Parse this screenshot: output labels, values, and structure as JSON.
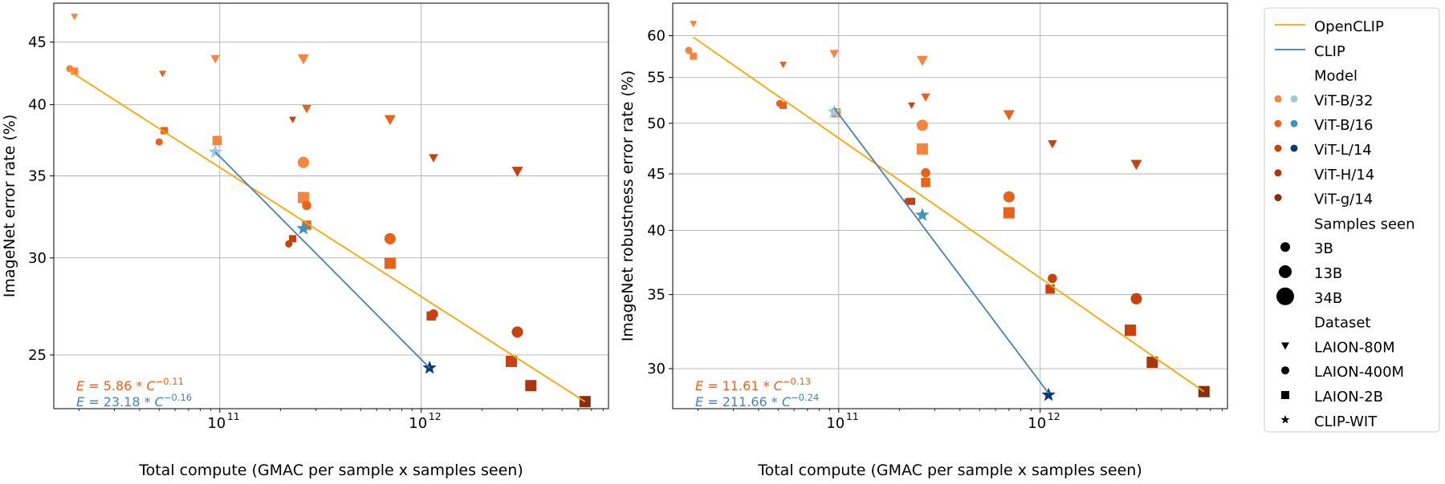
{
  "chart_data": [
    {
      "type": "scatter",
      "xlabel": "Total compute (GMAC per sample x samples seen)",
      "ylabel": "ImageNet error rate (%)",
      "xscale": "log",
      "yscale": "log",
      "xlim": [
        15000000000.0,
        8500000000000.0
      ],
      "ylim": [
        22.6,
        48.4
      ],
      "x_ticks": [
        100000000000.0,
        1000000000000.0
      ],
      "x_tick_labels": [
        "10",
        "10"
      ],
      "x_tick_exponents": [
        "11",
        "12"
      ],
      "y_ticks": [
        25,
        30,
        35,
        40,
        45
      ],
      "y_tick_labels": [
        "25",
        "30",
        "35",
        "40",
        "45"
      ],
      "grid": true,
      "fits": [
        {
          "name": "OpenCLIP",
          "x": [
            18000000000.0,
            6500000000000.0
          ],
          "y": [
            42.6,
            22.9
          ]
        },
        {
          "name": "CLIP",
          "x": [
            95000000000.0,
            1100000000000.0
          ],
          "y": [
            36.6,
            24.4
          ]
        }
      ],
      "annotations": [
        {
          "series": "OpenCLIP",
          "prefix": "E",
          "text": " = 5.86 * ",
          "base": "C",
          "exponent": "−0.11"
        },
        {
          "series": "CLIP",
          "prefix": "E",
          "text": " = 23.18 * ",
          "base": "C",
          "exponent": "−0.16"
        }
      ],
      "points": [
        {
          "model": "ViT-B/32",
          "samples": "3B",
          "dataset": "LAION-80M",
          "x": 19000000000.0,
          "y": 47.2
        },
        {
          "model": "ViT-B/32",
          "samples": "3B",
          "dataset": "LAION-400M",
          "x": 18000000000.0,
          "y": 42.8
        },
        {
          "model": "ViT-B/32",
          "samples": "3B",
          "dataset": "LAION-2B",
          "x": 19000000000.0,
          "y": 42.6
        },
        {
          "model": "ViT-B/16",
          "samples": "3B",
          "dataset": "LAION-80M",
          "x": 52000000000.0,
          "y": 42.4
        },
        {
          "model": "ViT-B/16",
          "samples": "3B",
          "dataset": "LAION-400M",
          "x": 50000000000.0,
          "y": 37.3
        },
        {
          "model": "ViT-B/16",
          "samples": "3B",
          "dataset": "LAION-2B",
          "x": 53000000000.0,
          "y": 38.1
        },
        {
          "model": "ViT-B/32",
          "samples": "13B",
          "dataset": "LAION-80M",
          "x": 95000000000.0,
          "y": 43.6
        },
        {
          "model": "ViT-B/32",
          "samples": "13B",
          "dataset": "LAION-2B",
          "x": 97000000000.0,
          "y": 37.4
        },
        {
          "model": "ViT-L/14",
          "samples": "3B",
          "dataset": "LAION-80M",
          "x": 230000000000.0,
          "y": 38.9
        },
        {
          "model": "ViT-L/14",
          "samples": "3B",
          "dataset": "LAION-400M",
          "x": 220000000000.0,
          "y": 30.8
        },
        {
          "model": "ViT-L/14",
          "samples": "3B",
          "dataset": "LAION-2B",
          "x": 230000000000.0,
          "y": 31.1
        },
        {
          "model": "ViT-B/32",
          "samples": "34B",
          "dataset": "LAION-80M",
          "x": 260000000000.0,
          "y": 43.6
        },
        {
          "model": "ViT-B/32",
          "samples": "34B",
          "dataset": "LAION-400M",
          "x": 260000000000.0,
          "y": 35.9
        },
        {
          "model": "ViT-B/32",
          "samples": "34B",
          "dataset": "LAION-2B",
          "x": 260000000000.0,
          "y": 33.6
        },
        {
          "model": "ViT-B/16",
          "samples": "13B",
          "dataset": "LAION-80M",
          "x": 270000000000.0,
          "y": 39.7
        },
        {
          "model": "ViT-B/16",
          "samples": "13B",
          "dataset": "LAION-400M",
          "x": 270000000000.0,
          "y": 33.1
        },
        {
          "model": "ViT-B/16",
          "samples": "13B",
          "dataset": "LAION-2B",
          "x": 270000000000.0,
          "y": 31.9
        },
        {
          "model": "ViT-B/16",
          "samples": "34B",
          "dataset": "LAION-80M",
          "x": 700000000000.0,
          "y": 38.9
        },
        {
          "model": "ViT-B/16",
          "samples": "34B",
          "dataset": "LAION-400M",
          "x": 700000000000.0,
          "y": 31.1
        },
        {
          "model": "ViT-B/16",
          "samples": "34B",
          "dataset": "LAION-2B",
          "x": 700000000000.0,
          "y": 29.7
        },
        {
          "model": "ViT-L/14",
          "samples": "13B",
          "dataset": "LAION-80M",
          "x": 1150000000000.0,
          "y": 36.2
        },
        {
          "model": "ViT-L/14",
          "samples": "13B",
          "dataset": "LAION-400M",
          "x": 1150000000000.0,
          "y": 27.0
        },
        {
          "model": "ViT-L/14",
          "samples": "13B",
          "dataset": "LAION-2B",
          "x": 1120000000000.0,
          "y": 26.9
        },
        {
          "model": "ViT-L/14",
          "samples": "34B",
          "dataset": "LAION-80M",
          "x": 3000000000000.0,
          "y": 35.3
        },
        {
          "model": "ViT-L/14",
          "samples": "34B",
          "dataset": "LAION-400M",
          "x": 3000000000000.0,
          "y": 26.1
        },
        {
          "model": "ViT-L/14",
          "samples": "34B",
          "dataset": "LAION-2B",
          "x": 2800000000000.0,
          "y": 24.7
        },
        {
          "model": "ViT-H/14",
          "samples": "34B",
          "dataset": "LAION-2B",
          "x": 3500000000000.0,
          "y": 23.6
        },
        {
          "model": "ViT-g/14",
          "samples": "34B",
          "dataset": "LAION-2B",
          "x": 6500000000000.0,
          "y": 22.9
        },
        {
          "model": "ViT-B/32",
          "samples": "",
          "dataset": "CLIP-WIT",
          "x": 95000000000.0,
          "y": 36.6
        },
        {
          "model": "ViT-B/16",
          "samples": "",
          "dataset": "CLIP-WIT",
          "x": 260000000000.0,
          "y": 31.7
        },
        {
          "model": "ViT-L/14",
          "samples": "",
          "dataset": "CLIP-WIT",
          "x": 1100000000000.0,
          "y": 24.4
        }
      ]
    },
    {
      "type": "scatter",
      "xlabel": "Total compute (GMAC per sample x samples seen)",
      "ylabel": "ImageNet robustness error rate (%)",
      "xscale": "log",
      "yscale": "log",
      "xlim": [
        15000000000.0,
        8500000000000.0
      ],
      "ylim": [
        27.6,
        64.2
      ],
      "x_ticks": [
        100000000000.0,
        1000000000000.0
      ],
      "x_tick_labels": [
        "10",
        "10"
      ],
      "x_tick_exponents": [
        "11",
        "12"
      ],
      "y_ticks": [
        30,
        35,
        40,
        45,
        50,
        55,
        60
      ],
      "y_tick_labels": [
        "30",
        "35",
        "40",
        "45",
        "50",
        "55",
        "60"
      ],
      "grid": true,
      "fits": [
        {
          "name": "OpenCLIP",
          "x": [
            19000000000.0,
            6500000000000.0
          ],
          "y": [
            59.8,
            28.6
          ]
        },
        {
          "name": "CLIP",
          "x": [
            95000000000.0,
            1100000000000.0
          ],
          "y": [
            51.6,
            28.5
          ]
        }
      ],
      "annotations": [
        {
          "series": "OpenCLIP",
          "prefix": "E",
          "text": " = 11.61 * ",
          "base": "C",
          "exponent": "−0.13"
        },
        {
          "series": "CLIP",
          "prefix": "E",
          "text": " = 211.66 * ",
          "base": "C",
          "exponent": "−0.24"
        }
      ],
      "points": [
        {
          "model": "ViT-B/32",
          "samples": "3B",
          "dataset": "LAION-80M",
          "x": 19000000000.0,
          "y": 61.5
        },
        {
          "model": "ViT-B/32",
          "samples": "3B",
          "dataset": "LAION-400M",
          "x": 18000000000.0,
          "y": 58.2
        },
        {
          "model": "ViT-B/32",
          "samples": "3B",
          "dataset": "LAION-2B",
          "x": 19000000000.0,
          "y": 57.5
        },
        {
          "model": "ViT-B/16",
          "samples": "3B",
          "dataset": "LAION-80M",
          "x": 53000000000.0,
          "y": 56.5
        },
        {
          "model": "ViT-B/16",
          "samples": "3B",
          "dataset": "LAION-400M",
          "x": 51000000000.0,
          "y": 52.1
        },
        {
          "model": "ViT-B/16",
          "samples": "3B",
          "dataset": "LAION-2B",
          "x": 53000000000.0,
          "y": 51.9
        },
        {
          "model": "ViT-B/32",
          "samples": "13B",
          "dataset": "LAION-80M",
          "x": 95000000000.0,
          "y": 57.8
        },
        {
          "model": "ViT-B/32",
          "samples": "13B",
          "dataset": "LAION-2B",
          "x": 97000000000.0,
          "y": 51.1
        },
        {
          "model": "ViT-L/14",
          "samples": "3B",
          "dataset": "LAION-80M",
          "x": 230000000000.0,
          "y": 51.9
        },
        {
          "model": "ViT-L/14",
          "samples": "3B",
          "dataset": "LAION-400M",
          "x": 220000000000.0,
          "y": 42.5
        },
        {
          "model": "ViT-L/14",
          "samples": "3B",
          "dataset": "LAION-2B",
          "x": 230000000000.0,
          "y": 42.5
        },
        {
          "model": "ViT-B/32",
          "samples": "34B",
          "dataset": "LAION-80M",
          "x": 260000000000.0,
          "y": 57.0
        },
        {
          "model": "ViT-B/32",
          "samples": "34B",
          "dataset": "LAION-400M",
          "x": 260000000000.0,
          "y": 49.8
        },
        {
          "model": "ViT-B/32",
          "samples": "34B",
          "dataset": "LAION-2B",
          "x": 260000000000.0,
          "y": 47.4
        },
        {
          "model": "ViT-B/16",
          "samples": "13B",
          "dataset": "LAION-80M",
          "x": 270000000000.0,
          "y": 52.8
        },
        {
          "model": "ViT-B/16",
          "samples": "13B",
          "dataset": "LAION-400M",
          "x": 270000000000.0,
          "y": 45.1
        },
        {
          "model": "ViT-B/16",
          "samples": "13B",
          "dataset": "LAION-2B",
          "x": 270000000000.0,
          "y": 44.2
        },
        {
          "model": "ViT-B/16",
          "samples": "34B",
          "dataset": "LAION-80M",
          "x": 700000000000.0,
          "y": 50.9
        },
        {
          "model": "ViT-B/16",
          "samples": "34B",
          "dataset": "LAION-400M",
          "x": 700000000000.0,
          "y": 42.9
        },
        {
          "model": "ViT-B/16",
          "samples": "34B",
          "dataset": "LAION-2B",
          "x": 700000000000.0,
          "y": 41.5
        },
        {
          "model": "ViT-L/14",
          "samples": "13B",
          "dataset": "LAION-80M",
          "x": 1150000000000.0,
          "y": 47.9
        },
        {
          "model": "ViT-L/14",
          "samples": "13B",
          "dataset": "LAION-400M",
          "x": 1150000000000.0,
          "y": 36.2
        },
        {
          "model": "ViT-L/14",
          "samples": "13B",
          "dataset": "LAION-2B",
          "x": 1120000000000.0,
          "y": 35.4
        },
        {
          "model": "ViT-L/14",
          "samples": "34B",
          "dataset": "LAION-80M",
          "x": 3000000000000.0,
          "y": 45.9
        },
        {
          "model": "ViT-L/14",
          "samples": "34B",
          "dataset": "LAION-400M",
          "x": 3000000000000.0,
          "y": 34.7
        },
        {
          "model": "ViT-L/14",
          "samples": "34B",
          "dataset": "LAION-2B",
          "x": 2800000000000.0,
          "y": 32.5
        },
        {
          "model": "ViT-H/14",
          "samples": "34B",
          "dataset": "LAION-2B",
          "x": 3600000000000.0,
          "y": 30.4
        },
        {
          "model": "ViT-g/14",
          "samples": "34B",
          "dataset": "LAION-2B",
          "x": 6500000000000.0,
          "y": 28.6
        },
        {
          "model": "ViT-B/32",
          "samples": "",
          "dataset": "CLIP-WIT",
          "x": 95000000000.0,
          "y": 51.2
        },
        {
          "model": "ViT-B/16",
          "samples": "",
          "dataset": "CLIP-WIT",
          "x": 260000000000.0,
          "y": 41.3
        },
        {
          "model": "ViT-L/14",
          "samples": "",
          "dataset": "CLIP-WIT",
          "x": 1100000000000.0,
          "y": 28.4
        }
      ]
    }
  ],
  "legend": {
    "placement": "right",
    "lines": [
      {
        "label": "OpenCLIP",
        "color": "#FFA500"
      },
      {
        "label": "CLIP",
        "color": "#4682B4"
      }
    ],
    "model_title": "Model",
    "models": [
      {
        "label": "ViT-B/32",
        "openclip_color": "#F5843D",
        "clip_color": "#9ECAE1"
      },
      {
        "label": "ViT-B/16",
        "openclip_color": "#E8621A",
        "clip_color": "#4292C6"
      },
      {
        "label": "ViT-L/14",
        "openclip_color": "#C84210",
        "clip_color": "#083A7A"
      },
      {
        "label": "ViT-H/14",
        "openclip_color": "#A8370C",
        "clip_color": ""
      },
      {
        "label": "ViT-g/14",
        "openclip_color": "#8A2C08",
        "clip_color": ""
      }
    ],
    "samples_title": "Samples seen",
    "samples": [
      {
        "label": "3B"
      },
      {
        "label": "13B"
      },
      {
        "label": "34B"
      }
    ],
    "dataset_title": "Dataset",
    "datasets": [
      {
        "label": "LAION-80M",
        "marker": "triangle-down"
      },
      {
        "label": "LAION-400M",
        "marker": "circle"
      },
      {
        "label": "LAION-2B",
        "marker": "square"
      },
      {
        "label": "CLIP-WIT",
        "marker": "star"
      }
    ]
  }
}
